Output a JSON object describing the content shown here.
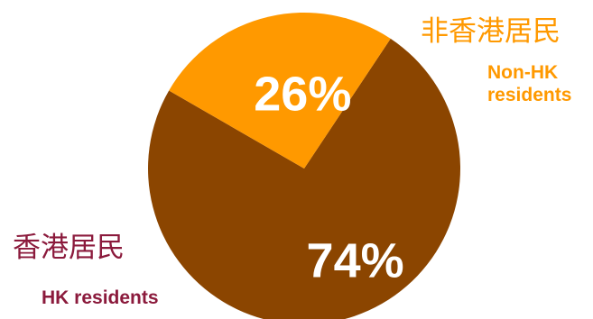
{
  "colors": {
    "hk": "#8b4500",
    "non_hk": "#ff9900",
    "hk_label": "#8b1a3c",
    "non_hk_label": "#ff9900",
    "slice_text": "#ffffff"
  },
  "chart_data": {
    "type": "pie",
    "slices": [
      {
        "label_zh": "非香港居民",
        "label_en_line1": "Non-HK",
        "label_en_line2": "residents",
        "value": 26,
        "display": "26%"
      },
      {
        "label_zh": "香港居民",
        "label_en": "HK residents",
        "value": 74,
        "display": "74%"
      }
    ]
  }
}
